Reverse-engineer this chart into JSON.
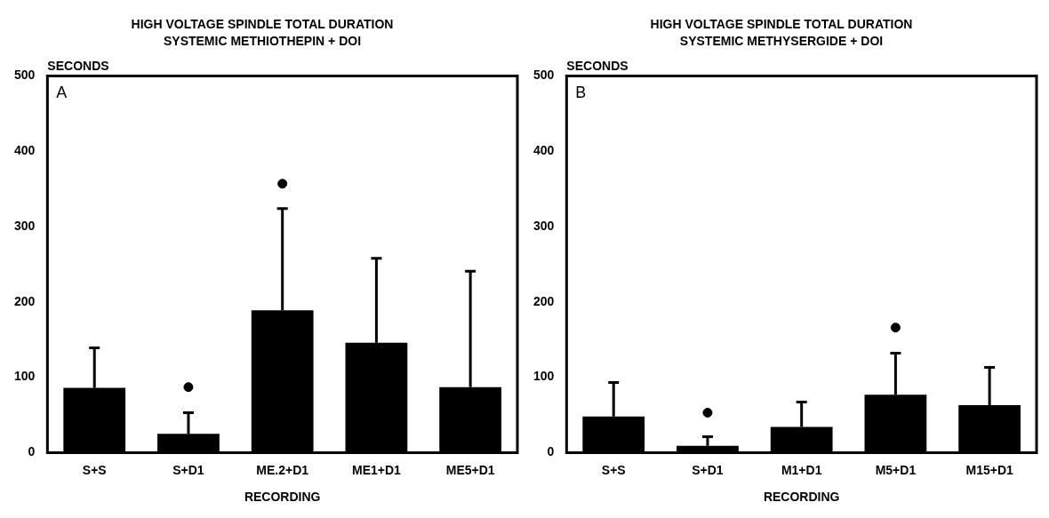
{
  "chart_data": [
    {
      "type": "bar",
      "title": "HIGH VOLTAGE SPINDLE TOTAL DURATION",
      "subtitle": "SYSTEMIC METHIOTHEPIN + DOI",
      "xlabel": "RECORDING",
      "ylabel": "SECONDS",
      "annotations": [
        "A"
      ],
      "categories": [
        "S+S",
        "S+D1",
        "ME.2+D1",
        "ME1+D1",
        "ME5+D1"
      ],
      "series": [
        {
          "color": "#000000",
          "values": [
            86,
            25,
            189,
            146,
            87
          ],
          "errors": [
            [
              86,
              139
            ],
            [
              25,
              53
            ],
            [
              189,
              324
            ],
            [
              146,
              258
            ],
            [
              87,
              241
            ]
          ]
        },
        {
          "type": "scatter",
          "color": "#000000",
          "x": [
            "S+D1",
            "ME.2+D1"
          ],
          "values": [
            87,
            357
          ],
          "marker": "circle"
        }
      ],
      "ylim": [
        0,
        500
      ],
      "yticks": [
        0,
        100,
        200,
        300,
        400,
        500
      ],
      "grid": false,
      "legend": false
    },
    {
      "type": "bar",
      "title": "HIGH VOLTAGE SPINDLE TOTAL DURATION",
      "subtitle": "SYSTEMIC METHYSERGIDE + DOI",
      "xlabel": "RECORDING",
      "ylabel": "SECONDS",
      "annotations": [
        "B"
      ],
      "categories": [
        "S+S",
        "S+D1",
        "M1+D1",
        "M5+D1",
        "M15+D1"
      ],
      "series": [
        {
          "color": "#000000",
          "values": [
            48,
            9,
            34,
            77,
            63
          ],
          "errors": [
            [
              48,
              93
            ],
            [
              9,
              21
            ],
            [
              34,
              67
            ],
            [
              77,
              132
            ],
            [
              63,
              113
            ]
          ]
        },
        {
          "type": "scatter",
          "color": "#000000",
          "x": [
            "S+D1",
            "M5+D1"
          ],
          "values": [
            53,
            166
          ],
          "marker": "circle"
        }
      ],
      "ylim": [
        0,
        500
      ],
      "yticks": [
        0,
        100,
        200,
        300,
        400,
        500
      ],
      "grid": false,
      "legend": false
    }
  ]
}
